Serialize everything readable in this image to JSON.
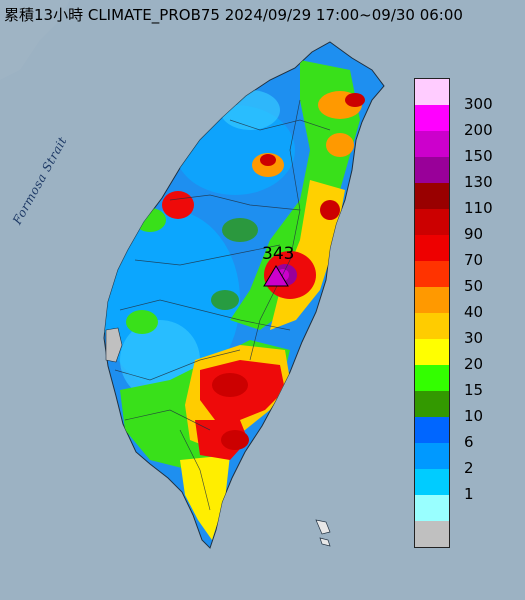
{
  "title": "累積13小時 CLIMATE_PROB75 2024/09/29 17:00~09/30 06:00",
  "strait_label": "Formosa Strait",
  "max_label": "343",
  "legend": {
    "colors": [
      "#ffccff",
      "#ff00ff",
      "#cc00cc",
      "#990099",
      "#990000",
      "#cc0000",
      "#ee0000",
      "#ff3300",
      "#ff9900",
      "#ffcc00",
      "#ffff00",
      "#33ff00",
      "#339900",
      "#0066ff",
      "#0099ff",
      "#00ccff",
      "#99ffff",
      "#c0c0c0"
    ],
    "labels": [
      "300",
      "200",
      "150",
      "130",
      "110",
      "90",
      "70",
      "50",
      "40",
      "30",
      "20",
      "15",
      "10",
      "6",
      "2",
      "1"
    ]
  }
}
